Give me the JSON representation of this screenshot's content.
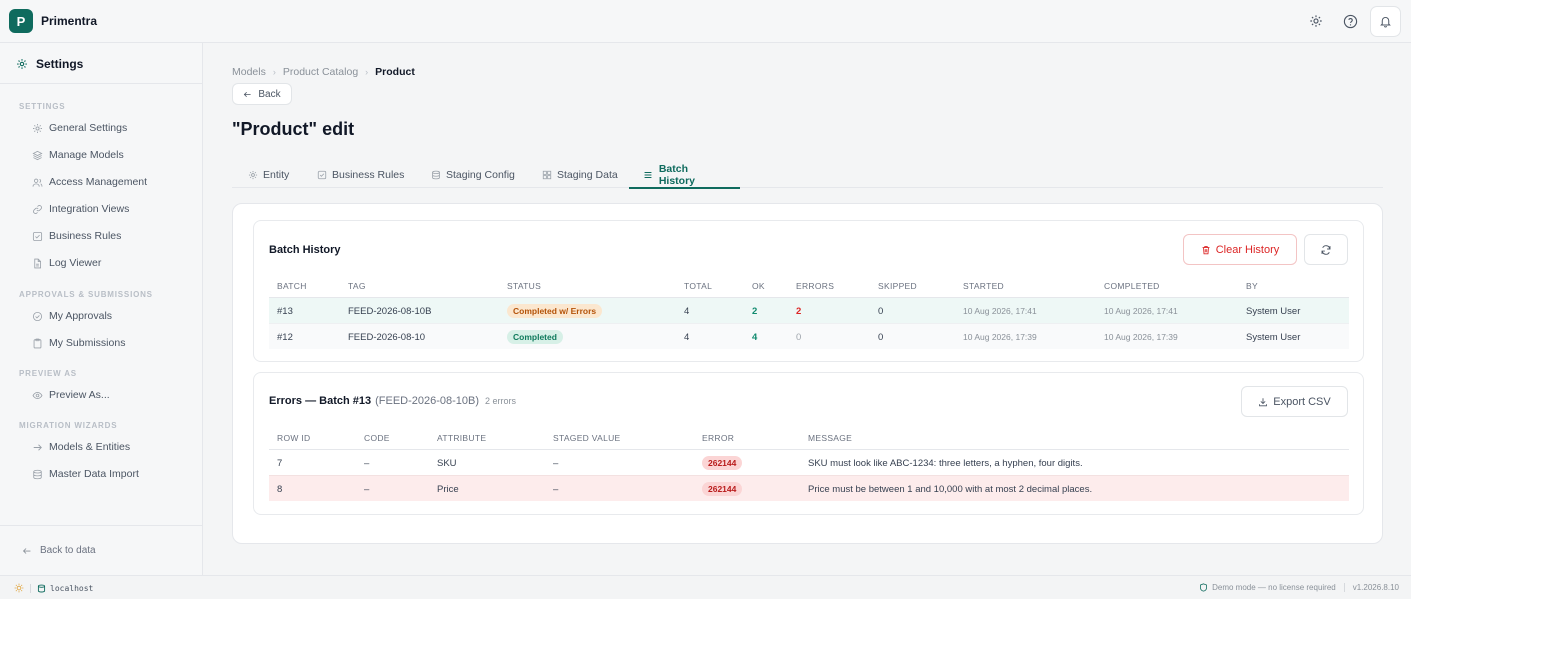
{
  "app": {
    "name": "Primentra",
    "logo_letter": "P",
    "brand_color": "#0f6b5e"
  },
  "topbar": {
    "icons": [
      "gear-icon",
      "help-icon",
      "bell-icon"
    ]
  },
  "sidebar": {
    "header": "Settings",
    "sections": [
      {
        "label": "SETTINGS",
        "items": [
          {
            "label": "General Settings",
            "icon": "gear-icon"
          },
          {
            "label": "Manage Models",
            "icon": "layers-icon"
          },
          {
            "label": "Access Management",
            "icon": "users-icon"
          },
          {
            "label": "Integration Views",
            "icon": "link-icon"
          },
          {
            "label": "Business Rules",
            "icon": "check-square-icon"
          },
          {
            "label": "Log Viewer",
            "icon": "file-icon"
          }
        ]
      },
      {
        "label": "APPROVALS & SUBMISSIONS",
        "items": [
          {
            "label": "My Approvals",
            "icon": "check-circle-icon"
          },
          {
            "label": "My Submissions",
            "icon": "clipboard-icon"
          }
        ]
      },
      {
        "label": "PREVIEW AS",
        "items": [
          {
            "label": "Preview As...",
            "icon": "eye-icon"
          }
        ]
      },
      {
        "label": "MIGRATION WIZARDS",
        "items": [
          {
            "label": "Models & Entities",
            "icon": "arrow-right-icon"
          },
          {
            "label": "Master Data Import",
            "icon": "database-icon"
          }
        ]
      }
    ],
    "back_label": "Back to data"
  },
  "breadcrumb": [
    "Models",
    "Product Catalog",
    "Product"
  ],
  "back_button": "Back",
  "page_title": "\"Product\" edit",
  "tabs": [
    {
      "label": "Entity",
      "icon": "gear-icon"
    },
    {
      "label": "Business Rules",
      "icon": "check-square-icon"
    },
    {
      "label": "Staging Config",
      "icon": "database-icon"
    },
    {
      "label": "Staging Data",
      "icon": "grid-icon"
    },
    {
      "label": "Batch History",
      "icon": "list-icon",
      "active": true
    }
  ],
  "batch_history": {
    "title": "Batch History",
    "clear_label": "Clear History",
    "columns": [
      "BATCH",
      "TAG",
      "STATUS",
      "TOTAL",
      "OK",
      "ERRORS",
      "SKIPPED",
      "STARTED",
      "COMPLETED",
      "BY"
    ],
    "rows": [
      {
        "batch": "#13",
        "tag": "FEED-2026-08-10B",
        "status": "Completed w/ Errors",
        "total": "4",
        "ok": "2",
        "errors": "2",
        "skipped": "0",
        "started": "10 Aug 2026, 17:41",
        "completed": "10 Aug 2026, 17:41",
        "by": "System User"
      },
      {
        "batch": "#12",
        "tag": "FEED-2026-08-10",
        "status": "Completed",
        "total": "4",
        "ok": "4",
        "errors": "0",
        "skipped": "0",
        "started": "10 Aug 2026, 17:39",
        "completed": "10 Aug 2026, 17:39",
        "by": "System User"
      }
    ]
  },
  "errors": {
    "title": "Errors — Batch #13",
    "tag": "(FEED-2026-08-10B)",
    "count": "2 errors",
    "export_label": "Export CSV",
    "columns": [
      "ROW ID",
      "CODE",
      "ATTRIBUTE",
      "STAGED VALUE",
      "ERROR",
      "MESSAGE"
    ],
    "rows": [
      {
        "row_id": "7",
        "code": "–",
        "attribute": "SKU",
        "staged": "–",
        "error": "262144",
        "message": "SKU must look like ABC-1234: three letters, a hyphen, four digits."
      },
      {
        "row_id": "8",
        "code": "–",
        "attribute": "Price",
        "staged": "–",
        "error": "262144",
        "message": "Price must be between 1 and 10,000 with at most 2 decimal places."
      }
    ]
  },
  "statusbar": {
    "host": "localhost",
    "demo": "Demo mode — no license required",
    "version": "v1.2026.8.10"
  }
}
